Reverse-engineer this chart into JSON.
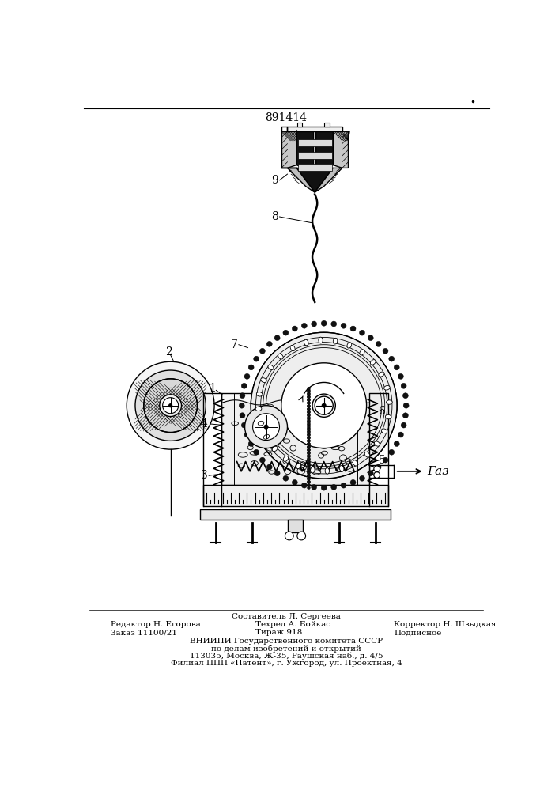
{
  "patent_number": "891414",
  "bg_color": "#ffffff",
  "line_color": "#000000",
  "footer_line0_center": "Составитель Л. Сергеева",
  "footer_line1_left": "Редактор Н. Егорова",
  "footer_line1_center": "Техред А. Бойкас",
  "footer_line1_right": "Корректор Н. Швыдкая",
  "footer_line2_left": "Заказ 11100/21",
  "footer_line2_center": "Тираж 918",
  "footer_line2_right": "Подписное",
  "footer_org1": "ВНИИПИ Государственного комитета СССР",
  "footer_org2": "по делам изобретений и открытий",
  "footer_org3": "113035, Москва, Ж-35, Раушская наб., д. 4/5",
  "footer_org4": "Филиал ППП «Патент», г. Ужгород, ул. Проектная, 4",
  "label_gas": "Газ"
}
